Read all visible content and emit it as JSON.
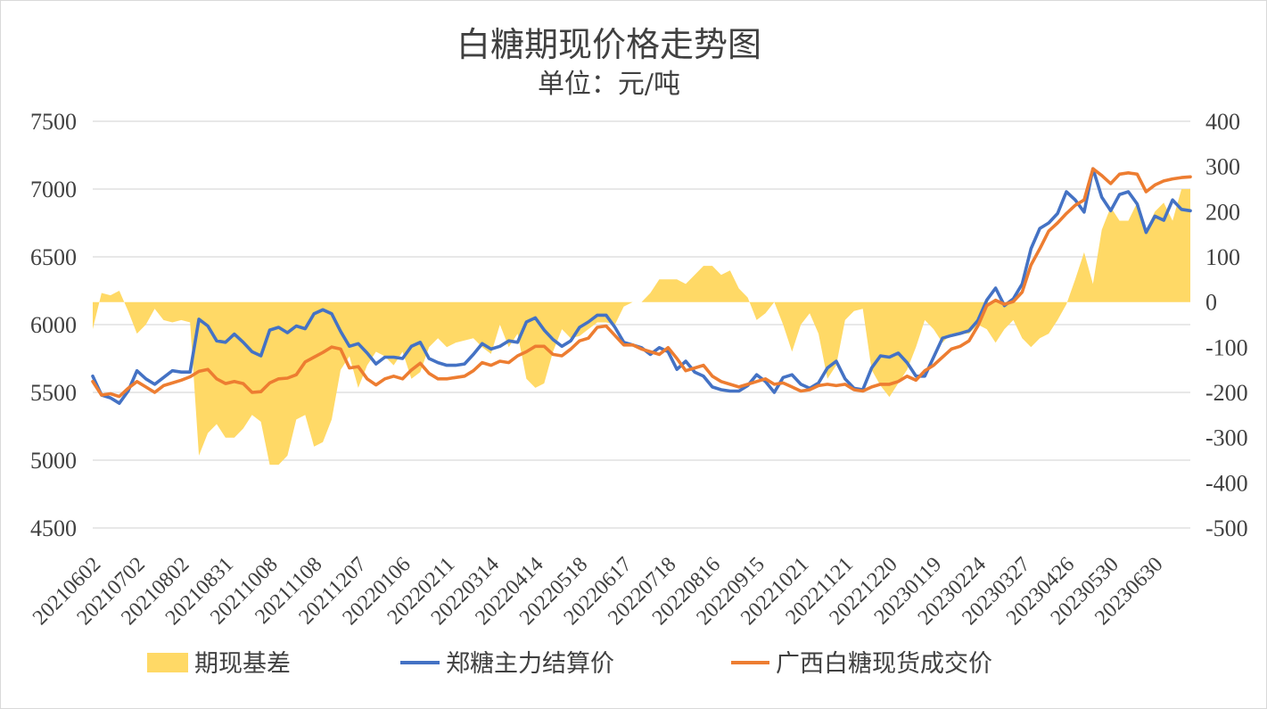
{
  "chart_data": {
    "type": "line",
    "title": "白糖期现价格走势图",
    "subtitle": "单位：元/吨",
    "x_tick_labels": [
      "20210602",
      "20210702",
      "20210802",
      "20210831",
      "20211008",
      "20211108",
      "20211207",
      "20220106",
      "20220211",
      "20220314",
      "20220414",
      "20220518",
      "20220617",
      "20220718",
      "20220816",
      "20220915",
      "20221021",
      "20221121",
      "20221220",
      "20230119",
      "20230224",
      "20230327",
      "20230426",
      "20230530",
      "20230630"
    ],
    "tick_every": 5,
    "y_left": {
      "min": 4500,
      "max": 7500,
      "ticks": [
        7500,
        7000,
        6500,
        6000,
        5500,
        5000,
        4500
      ]
    },
    "y_right": {
      "min": -500,
      "max": 400,
      "ticks": [
        400,
        300,
        200,
        100,
        0,
        -100,
        -200,
        -300,
        -400,
        -500
      ]
    },
    "grid": true,
    "legend": "bottom",
    "series": [
      {
        "name": "期现基差",
        "axis": "right",
        "kind": "area",
        "color": "#FFD966",
        "values": [
          -60,
          20,
          15,
          25,
          -20,
          -70,
          -50,
          -15,
          -40,
          -45,
          -40,
          -45,
          -340,
          -290,
          -270,
          -300,
          -300,
          -280,
          -250,
          -265,
          -360,
          -360,
          -340,
          -260,
          -250,
          -320,
          -310,
          -260,
          -150,
          -120,
          -190,
          -140,
          -110,
          -120,
          -140,
          -110,
          -170,
          -155,
          -100,
          -80,
          -100,
          -90,
          -85,
          -80,
          -100,
          -115,
          -50,
          -100,
          -70,
          -170,
          -190,
          -180,
          -110,
          -60,
          -80,
          -75,
          -60,
          -45,
          -45,
          -50,
          -10,
          0,
          0,
          20,
          50,
          50,
          50,
          40,
          60,
          80,
          80,
          60,
          70,
          30,
          10,
          -40,
          -25,
          0,
          -50,
          -110,
          -50,
          -25,
          -70,
          -170,
          -140,
          -40,
          -20,
          -15,
          -150,
          -185,
          -210,
          -180,
          -150,
          -100,
          -40,
          -60,
          -90,
          -70,
          -70,
          -70,
          -50,
          -60,
          -90,
          -60,
          -40,
          -80,
          -100,
          -80,
          -70,
          -40,
          -5,
          50,
          110,
          40,
          160,
          210,
          180,
          180,
          220,
          160,
          200,
          220,
          180,
          250,
          250
        ]
      },
      {
        "name": "郑糖主力结算价",
        "axis": "left",
        "kind": "line",
        "color": "#4472C4",
        "values": [
          5620,
          5480,
          5460,
          5420,
          5510,
          5660,
          5600,
          5560,
          5610,
          5660,
          5650,
          5650,
          6040,
          5990,
          5880,
          5870,
          5930,
          5870,
          5800,
          5770,
          5960,
          5980,
          5940,
          5990,
          5970,
          6080,
          6110,
          6080,
          5950,
          5840,
          5860,
          5790,
          5710,
          5760,
          5760,
          5750,
          5840,
          5870,
          5750,
          5720,
          5700,
          5700,
          5710,
          5780,
          5860,
          5820,
          5840,
          5880,
          5870,
          6020,
          6050,
          5960,
          5890,
          5840,
          5880,
          5980,
          6020,
          6070,
          6070,
          5980,
          5870,
          5850,
          5830,
          5780,
          5830,
          5800,
          5670,
          5730,
          5650,
          5620,
          5540,
          5520,
          5510,
          5510,
          5550,
          5630,
          5580,
          5500,
          5610,
          5630,
          5560,
          5530,
          5570,
          5680,
          5730,
          5600,
          5530,
          5520,
          5680,
          5770,
          5760,
          5790,
          5720,
          5620,
          5620,
          5760,
          5900,
          5920,
          5935,
          5955,
          6030,
          6180,
          6270,
          6140,
          6190,
          6300,
          6560,
          6710,
          6750,
          6820,
          6980,
          6920,
          6830,
          7150,
          6940,
          6840,
          6960,
          6980,
          6890,
          6680,
          6800,
          6770,
          6920,
          6850,
          6840
        ]
      },
      {
        "name": "广西白糖现货成交价",
        "axis": "left",
        "kind": "line",
        "color": "#ED7D31",
        "values": [
          5580,
          5480,
          5490,
          5470,
          5530,
          5580,
          5540,
          5500,
          5550,
          5570,
          5590,
          5615,
          5655,
          5670,
          5600,
          5565,
          5580,
          5565,
          5500,
          5505,
          5570,
          5600,
          5605,
          5630,
          5725,
          5760,
          5795,
          5835,
          5820,
          5680,
          5690,
          5600,
          5555,
          5600,
          5620,
          5600,
          5665,
          5715,
          5640,
          5600,
          5600,
          5610,
          5620,
          5660,
          5720,
          5700,
          5730,
          5720,
          5770,
          5800,
          5840,
          5840,
          5780,
          5770,
          5820,
          5880,
          5900,
          5980,
          5990,
          5920,
          5850,
          5850,
          5820,
          5800,
          5780,
          5830,
          5750,
          5660,
          5680,
          5700,
          5620,
          5580,
          5560,
          5540,
          5560,
          5580,
          5600,
          5560,
          5570,
          5540,
          5510,
          5520,
          5550,
          5560,
          5550,
          5560,
          5520,
          5510,
          5540,
          5560,
          5560,
          5580,
          5620,
          5590,
          5660,
          5700,
          5760,
          5820,
          5840,
          5880,
          5990,
          6140,
          6180,
          6150,
          6170,
          6240,
          6440,
          6560,
          6690,
          6750,
          6820,
          6880,
          6920,
          7150,
          7100,
          7040,
          7110,
          7120,
          7110,
          6980,
          7030,
          7060,
          7075,
          7085,
          7090
        ]
      }
    ]
  }
}
